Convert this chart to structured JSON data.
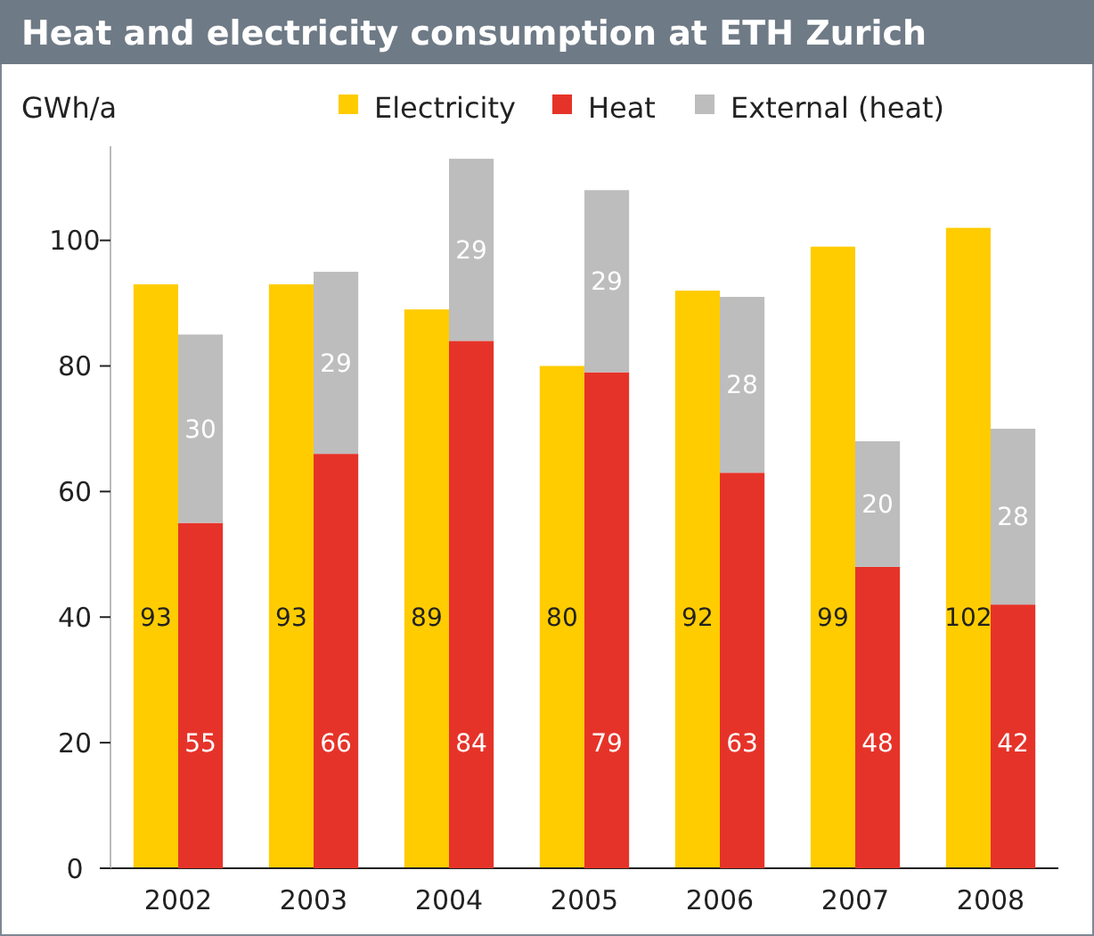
{
  "chart_data": [
    {
      "type": "bar",
      "title": "Heat and electricity consumption at ETH Zurich",
      "ylabel": "GWh/a",
      "categories": [
        "2002",
        "2003",
        "2004",
        "2005",
        "2006",
        "2007",
        "2008"
      ],
      "series": [
        {
          "name": "Electricity",
          "color": "#ffcc00",
          "values": [
            93,
            93,
            89,
            80,
            92,
            99,
            102
          ]
        }
      ],
      "ylim": [
        0,
        115
      ],
      "yticks": [
        0,
        20,
        40,
        60,
        80,
        100
      ],
      "data_labels": true,
      "legend": "top"
    },
    {
      "type": "bar",
      "categories": [
        "2002",
        "2003",
        "2004",
        "2005",
        "2006",
        "2007",
        "2008"
      ],
      "series": [
        {
          "name": "Heat",
          "color": "#e63329",
          "values": [
            55,
            66,
            84,
            79,
            63,
            48,
            42
          ]
        },
        {
          "name": "External (heat)",
          "color": "#bdbdbd",
          "values": [
            30,
            29,
            29,
            29,
            28,
            20,
            28
          ]
        }
      ],
      "stacked": true,
      "ylim": [
        0,
        115
      ],
      "tick_labels": false,
      "data_labels": true,
      "legend": "top right"
    }
  ]
}
